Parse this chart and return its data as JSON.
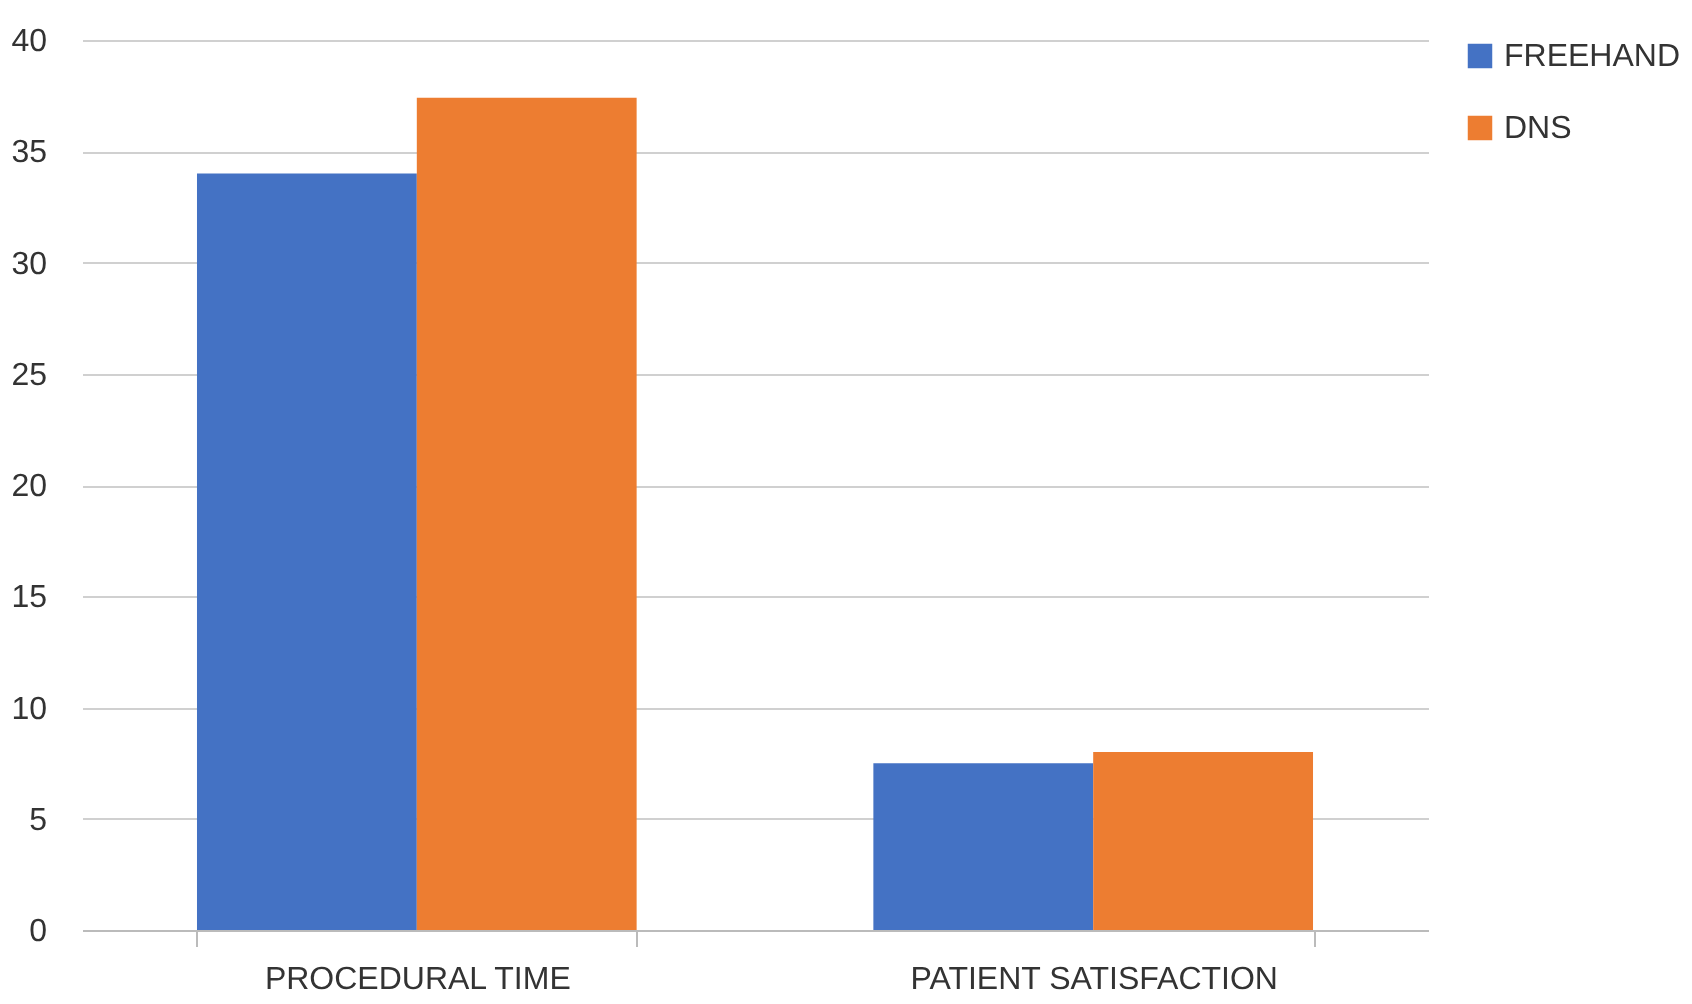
{
  "chart_data": {
    "type": "bar",
    "categories": [
      "PROCEDURAL TIME",
      "PATIENT SATISFACTION"
    ],
    "series": [
      {
        "name": "FREEHAND",
        "color": "#4472c4",
        "values": [
          34,
          7.5
        ]
      },
      {
        "name": "DNS",
        "color": "#ed7d31",
        "values": [
          37.4,
          8
        ]
      }
    ],
    "ylim": [
      0,
      40
    ],
    "yticks": [
      0,
      5,
      10,
      15,
      20,
      25,
      30,
      35,
      40
    ],
    "grid": "y",
    "legend": "right"
  }
}
